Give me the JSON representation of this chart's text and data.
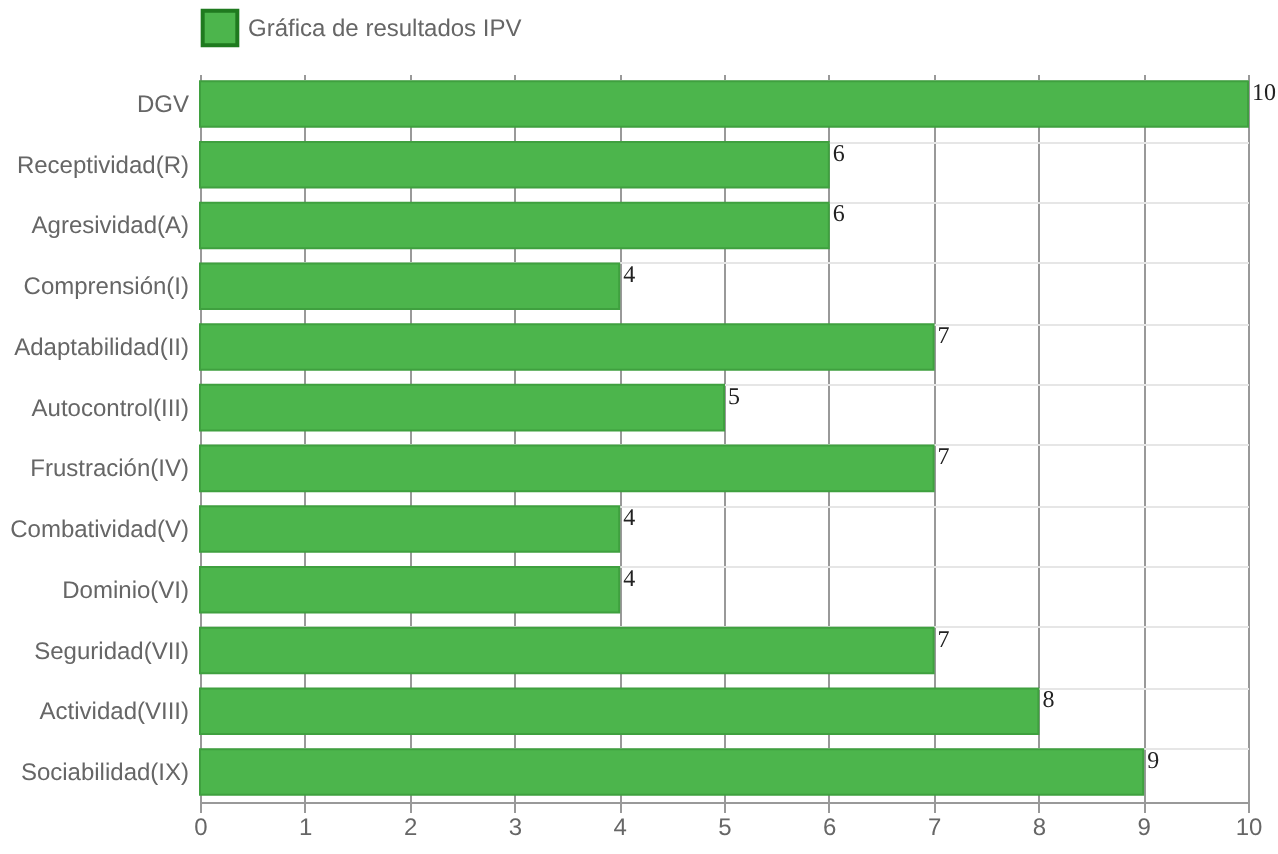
{
  "chart_data": {
    "type": "bar",
    "orientation": "horizontal",
    "categories": [
      "DGV",
      "Receptividad(R)",
      "Agresividad(A)",
      "Comprensión(I)",
      "Adaptabilidad(II)",
      "Autocontrol(III)",
      "Frustración(IV)",
      "Combatividad(V)",
      "Dominio(VI)",
      "Seguridad(VII)",
      "Actividad(VIII)",
      "Sociabilidad(IX)"
    ],
    "series": [
      {
        "name": "Gráfica de resultados IPV",
        "color": "#4cb54c",
        "values": [
          10,
          6,
          6,
          4,
          7,
          5,
          7,
          4,
          4,
          7,
          8,
          9
        ]
      }
    ],
    "xlim": [
      0,
      10
    ],
    "xticks": [
      0,
      1,
      2,
      3,
      4,
      5,
      6,
      7,
      8,
      9,
      10
    ],
    "grid": true,
    "legend": "top",
    "data_labels": true
  }
}
